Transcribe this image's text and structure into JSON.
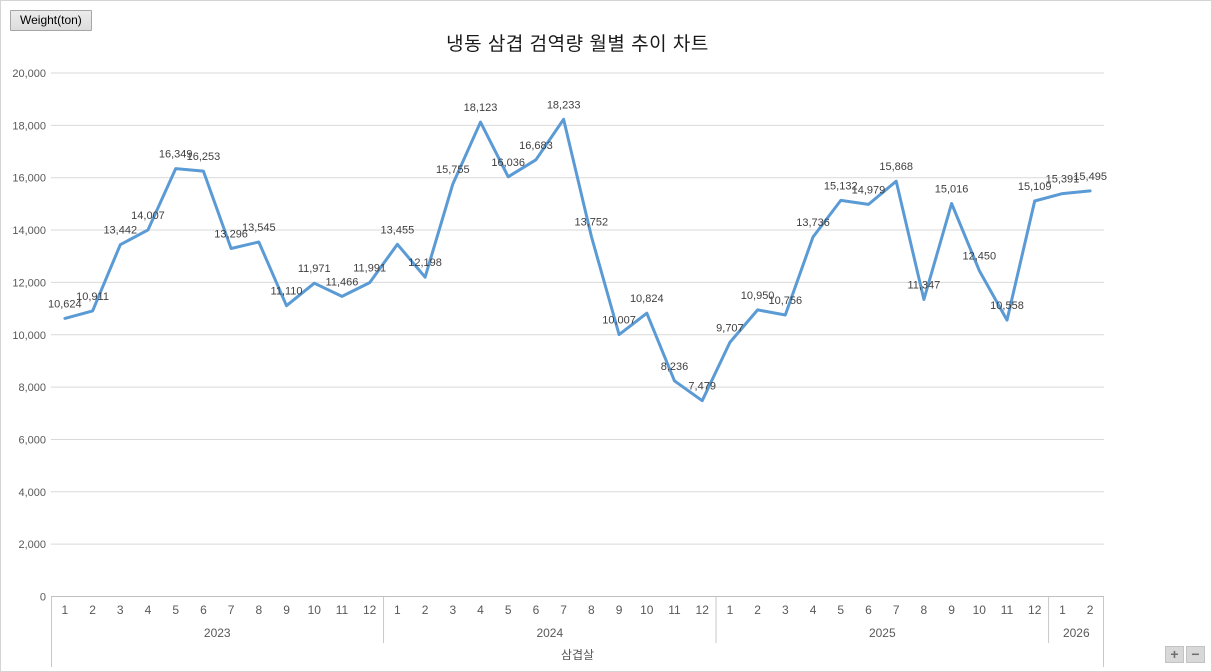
{
  "chart": {
    "title": "냉동 삼겹 검역량 월별 추이 차트",
    "weight_button_label": "Weight(ton)",
    "xlabel": "삼겹살",
    "zoom_in_label": "+",
    "zoom_out_label": "−"
  },
  "chart_data": {
    "type": "line",
    "title": "냉동 삼겹 검역량 월별 추이 차트",
    "ylabel": "Weight(ton)",
    "xlabel": "삼겹살",
    "ylim": [
      0,
      20000
    ],
    "ytick_step": 2000,
    "grid": true,
    "legend": "none",
    "line_color": "#5B9BD5",
    "gridline_color": "#d9d9d9",
    "axis_text_color": "#595959",
    "data_label_color": "#404040",
    "groups": [
      {
        "year": "2023",
        "months": [
          "1",
          "2",
          "3",
          "4",
          "5",
          "6",
          "7",
          "8",
          "9",
          "10",
          "11",
          "12"
        ],
        "values": [
          10624,
          10911,
          13442,
          14007,
          16349,
          16253,
          13296,
          13545,
          11110,
          11971,
          11466,
          11991
        ]
      },
      {
        "year": "2024",
        "months": [
          "1",
          "2",
          "3",
          "4",
          "5",
          "6",
          "7",
          "8",
          "9",
          "10",
          "11",
          "12"
        ],
        "values": [
          13455,
          12198,
          15755,
          18123,
          16036,
          16683,
          18233,
          13752,
          10007,
          10824,
          8236,
          7479
        ]
      },
      {
        "year": "2025",
        "months": [
          "1",
          "2",
          "3",
          "4",
          "5",
          "6",
          "7",
          "8",
          "9",
          "10",
          "11",
          "12"
        ],
        "values": [
          9707,
          10950,
          10756,
          13736,
          15132,
          14979,
          15868,
          11347,
          15016,
          12450,
          10558,
          15109
        ]
      },
      {
        "year": "2026",
        "months": [
          "1",
          "2"
        ],
        "values": [
          15391,
          15495
        ]
      }
    ]
  }
}
